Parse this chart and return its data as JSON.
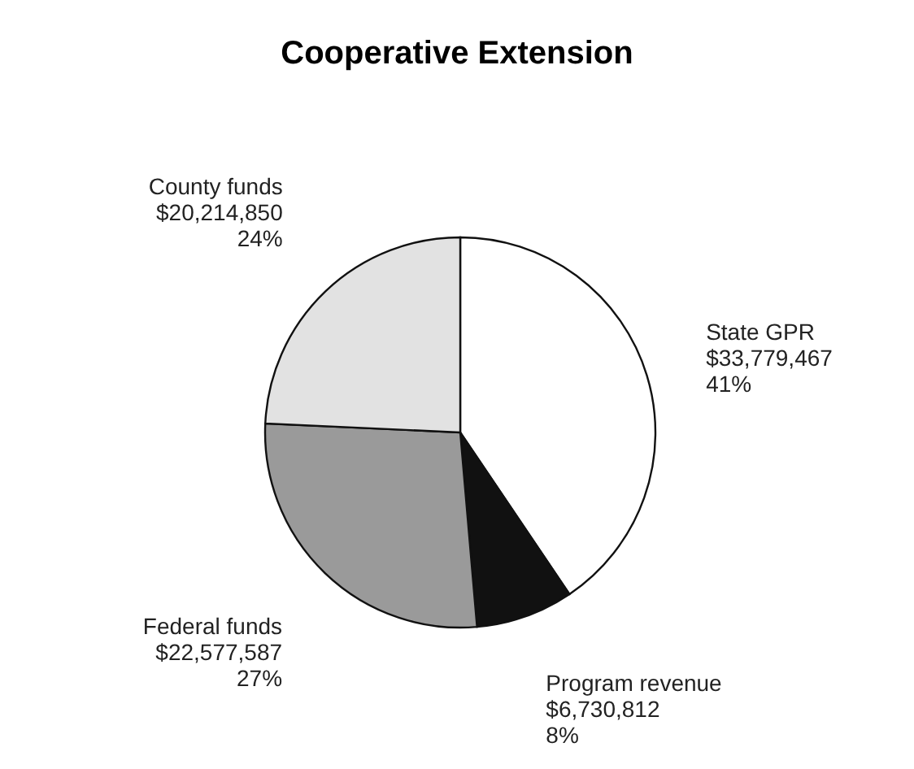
{
  "chart_data": {
    "type": "pie",
    "title": "Cooperative Extension",
    "categories": [
      "State GPR",
      "Program revenue",
      "Federal funds",
      "County funds"
    ],
    "values": [
      33779467,
      6730812,
      22577587,
      20214850
    ],
    "value_labels": [
      "$33,779,467\n41%",
      "$6,730,812\n8%",
      "$22,577,587\n27%",
      "$20,214,850\n24%"
    ],
    "colors": [
      "#ffffff",
      "#111111",
      "#9a9a9a",
      "#e2e2e2"
    ]
  }
}
